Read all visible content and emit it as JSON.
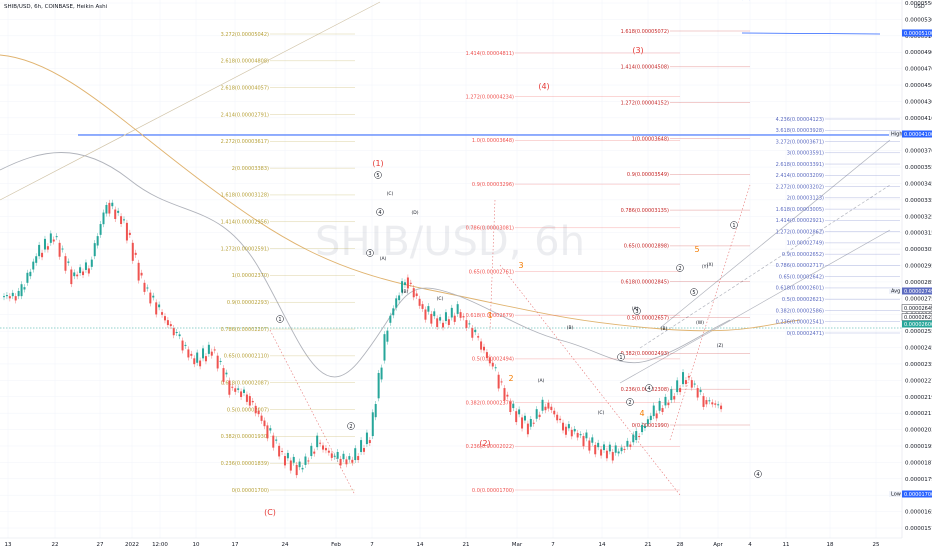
{
  "header": {
    "symbol_line": "SHIB/USD, 6h, COINBASE, Heikin Ashi",
    "watermark": "SHIB/USD, 6h",
    "currency": "USD"
  },
  "chart_data": {
    "type": "candlestick",
    "title": "SHIB/USD, 6h, COINBASE, Heikin Ashi",
    "ylim": [
      1.56e-05,
      5.5e-05
    ],
    "x_ticks": [
      "13",
      "22",
      "27",
      "2022",
      "12:00",
      "10",
      "17",
      "24",
      "Feb",
      "7",
      "14",
      "21",
      "Mar",
      "7",
      "14",
      "21",
      "28",
      "Apr",
      "4",
      "11",
      "18",
      "25"
    ],
    "y_ticks": [
      "0.00005500",
      "0.00005300",
      "0.00005100",
      "0.00004900",
      "0.00004700",
      "0.00004500",
      "0.00004300",
      "0.00004100",
      "0.00003900",
      "0.00003700",
      "0.00003550",
      "0.00003450",
      "0.00003350",
      "0.00003250",
      "0.00003150",
      "0.00003050",
      "0.00002950",
      "0.00002850",
      "0.00002750",
      "0.00002650",
      "0.00002550",
      "0.00002450",
      "0.00002350",
      "0.00002270",
      "0.00002190",
      "0.00002110",
      "0.00002030",
      "0.00001950",
      "0.00001870",
      "0.00001790",
      "0.00001720",
      "0.00001650",
      "0.00001574"
    ],
    "price_tags": [
      {
        "label": "High",
        "value": "0.00004100"
      },
      {
        "label": "Avg",
        "value": "0.00002749"
      },
      {
        "label": "",
        "value": "0.00002649"
      },
      {
        "label": "",
        "value": "0.00002621"
      },
      {
        "label": "",
        "value": "0.00002600"
      },
      {
        "label": "Low",
        "value": "0.00001700"
      },
      {
        "label": "",
        "value": "0.00005100"
      }
    ],
    "close_series": [
      3.3e-05,
      3.6e-05,
      3.75e-05,
      3.45e-05,
      3.52e-05,
      4e-05,
      3.85e-05,
      3.4e-05,
      3.18e-05,
      3e-05,
      2.8e-05,
      2.9e-05,
      2.62e-05,
      2.55e-05,
      2.33e-05,
      2.1e-05,
      2e-05,
      2.2e-05,
      2.08e-05,
      2.07e-05,
      2.25e-05,
      3.1e-05,
      3.44e-05,
      3.2e-05,
      3.1e-05,
      3.18e-05,
      3e-05,
      2.76e-05,
      2.46e-05,
      2.32e-05,
      2.5e-05,
      2.32e-05,
      2.25e-05,
      2.15e-05,
      2.12e-05,
      2.22e-05,
      2.4e-05,
      2.52e-05,
      2.7e-05,
      2.52e-05,
      2.47e-05
    ],
    "fib_left": [
      "3.272(0.00005042)",
      "2.618(0.00004808)",
      "2.618(0.00004057)",
      "2.414(0.00002791)",
      "2.272(0.00003617)",
      "2(0.00003383)",
      "1.618(0.00003128)",
      "1.414(0.00002956)",
      "1.272(0.00002591)",
      "1(0.00002370)",
      "0.9(0.00002293)",
      "0.786(0.00002207)",
      "0.65(0.00002110)",
      "0.618(0.00002087)",
      "0.5(0.00002007)",
      "0.382(0.00001930)",
      "0.236(0.00001839)",
      "0(0.00001700)"
    ],
    "fib_mid": [
      "1.414(0.00004811)",
      "1.272(0.00004234)",
      "1.0(0.00003648)",
      "0.9(0.00003296)",
      "0.786(0.00003081)",
      "0.65(0.00002761)",
      "0.618(0.00002679)",
      "0.5(0.00002494)",
      "0.382(0.00002370)",
      "0.236(0.00002022)",
      "0.0(0.00001700)"
    ],
    "fib_right": [
      "1.618(0.00005072)",
      "1.414(0.00004508)",
      "1.272(0.00004152)",
      "1(0.00003648)",
      "0.9(0.00003549)",
      "0.786(0.00003135)",
      "0.65(0.00002898)",
      "0.618(0.00002845)",
      "0.5(0.00002657)",
      "0.382(0.00002493)",
      "0.236(0.00002308)",
      "0(0.00001990)"
    ],
    "fib_far": [
      "4.236(0.00004123)",
      "3.618(0.00003928)",
      "3.272(0.00003671)",
      "3(0.00003591)",
      "2.618(0.00003391)",
      "2.414(0.00003209)",
      "2.272(0.00003202)",
      "2(0.00003123)",
      "1.618(0.00003005)",
      "1.414(0.00002921)",
      "1.272(0.00002862)",
      "1(0.00002749)",
      "0.9(0.00002652)",
      "0.786(0.00002717)",
      "0.65(0.00002642)",
      "0.618(0.00002601)",
      "0.5(0.00002621)",
      "0.382(0.00002586)",
      "0.236(0.00002541)",
      "0(0.00002471)"
    ],
    "wave_labels": {
      "major": [
        "(1)",
        "(2)",
        "(3)",
        "(4)",
        "(C)"
      ],
      "orange": [
        "3",
        "2",
        "4",
        "5",
        "1"
      ],
      "circled": [
        "1",
        "2",
        "3",
        "4",
        "5",
        "1",
        "2",
        "3",
        "4",
        "5",
        "1",
        "2",
        "4"
      ],
      "abc": [
        "(A)",
        "(B)",
        "(C)",
        "(D)",
        "(A)",
        "(B)",
        "(C)",
        "(A)",
        "(B)",
        "(C)",
        "(W)",
        "(X)",
        "(Y)",
        "(Z)"
      ]
    }
  }
}
